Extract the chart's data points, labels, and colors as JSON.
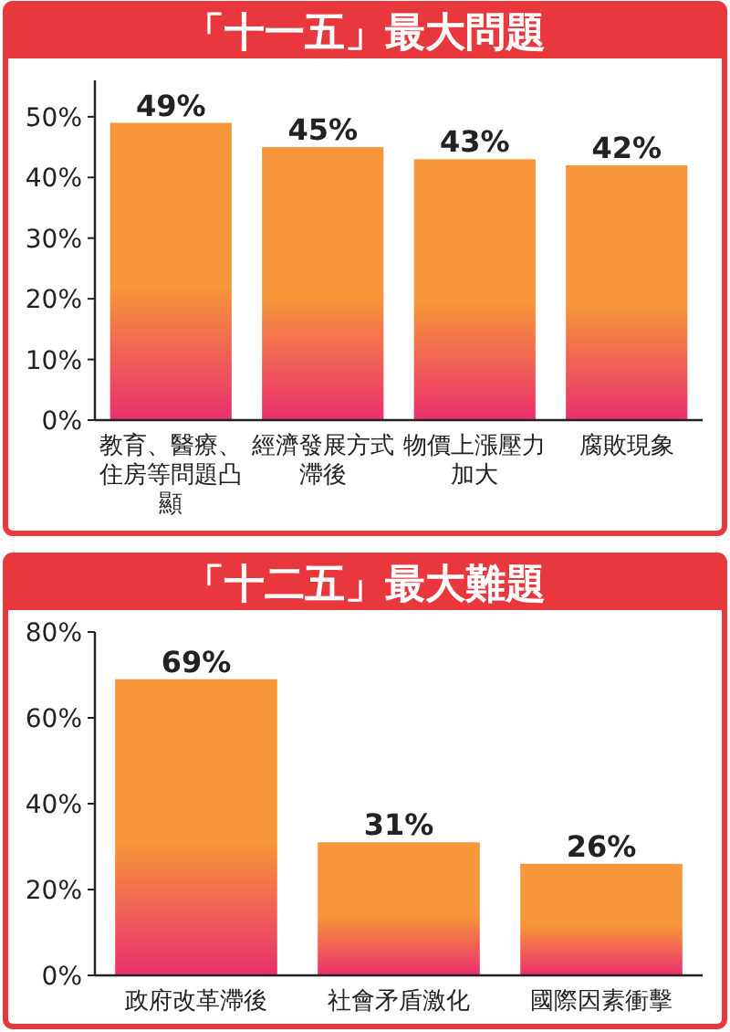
{
  "chart_data": [
    {
      "type": "bar",
      "title": "「十一五」最大問題",
      "categories": [
        "教育、醫療、住房等問題凸顯",
        "經濟發展方式滯後",
        "物價上漲壓力加大",
        "腐敗現象"
      ],
      "values": [
        49,
        45,
        43,
        42
      ],
      "value_labels": [
        "49%",
        "45%",
        "43%",
        "42%"
      ],
      "color": "#f7963a",
      "ylim": [
        0,
        56
      ],
      "yticks": [
        {
          "value": 0,
          "label": "0%"
        },
        {
          "value": 10,
          "label": "10%"
        },
        {
          "value": 20,
          "label": "20%"
        },
        {
          "value": 30,
          "label": "30%"
        },
        {
          "value": 40,
          "label": "40%"
        },
        {
          "value": 50,
          "label": "50%"
        }
      ]
    },
    {
      "type": "bar",
      "title": "「十二五」最大難題",
      "categories": [
        "政府改革滯後",
        "社會矛盾激化",
        "國際因素衝擊"
      ],
      "values": [
        69,
        31,
        26
      ],
      "value_labels": [
        "69%",
        "31%",
        "26%"
      ],
      "color": "#f7963a",
      "ylim": [
        0,
        80
      ],
      "yticks": [
        {
          "value": 0,
          "label": "0%"
        },
        {
          "value": 20,
          "label": "20%"
        },
        {
          "value": 40,
          "label": "40%"
        },
        {
          "value": 60,
          "label": "60%"
        },
        {
          "value": 80,
          "label": "80%"
        }
      ]
    }
  ]
}
